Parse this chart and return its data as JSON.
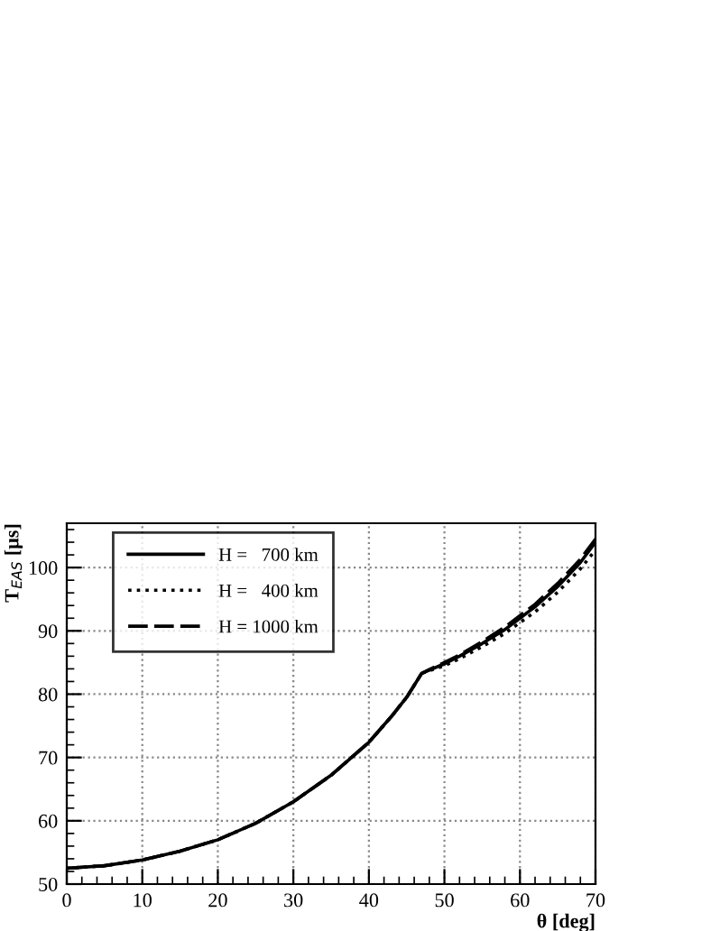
{
  "chart_data": {
    "type": "line",
    "xlabel": "θ [deg]",
    "ylabel": "T$_{EAS}$ [μs]",
    "x": [
      0,
      5,
      10,
      15,
      20,
      25,
      30,
      35,
      40,
      43,
      45,
      47,
      48,
      50,
      52,
      55,
      58,
      60,
      62,
      65,
      68,
      70
    ],
    "series": [
      {
        "name": "H =   700 km",
        "color": "#000000",
        "line_style": "solid",
        "values": [
          52.5,
          52.9,
          53.8,
          55.2,
          57,
          59.6,
          63,
          67.2,
          72.4,
          76.5,
          79.5,
          83.3,
          83.8,
          84.8,
          86,
          88,
          90.2,
          92,
          93.8,
          97,
          100.8,
          104
        ]
      },
      {
        "name": "H =   400 km",
        "color": "#000000",
        "line_style": "dotted",
        "values": [
          52.5,
          52.9,
          53.8,
          55.2,
          57,
          59.6,
          63,
          67.2,
          72.4,
          76.5,
          79.5,
          83.3,
          83.7,
          84.5,
          85.6,
          87.5,
          89.6,
          91.3,
          93,
          96.1,
          99.8,
          102.8
        ]
      },
      {
        "name": "H = 1000 km",
        "color": "#000000",
        "line_style": "dashed",
        "values": [
          52.5,
          52.9,
          53.8,
          55.2,
          57,
          59.6,
          63,
          67.2,
          72.4,
          76.5,
          79.5,
          83.3,
          83.9,
          85,
          86.2,
          88.3,
          90.6,
          92.4,
          94.2,
          97.5,
          101.3,
          104.5
        ]
      }
    ],
    "xlim": [
      0,
      70
    ],
    "ylim": [
      50,
      107
    ],
    "xticks": [
      0,
      10,
      20,
      30,
      40,
      50,
      60,
      70
    ],
    "yticks": [
      50,
      60,
      70,
      80,
      90,
      100
    ],
    "grid": true,
    "legend": "top left",
    "marker": "none"
  }
}
